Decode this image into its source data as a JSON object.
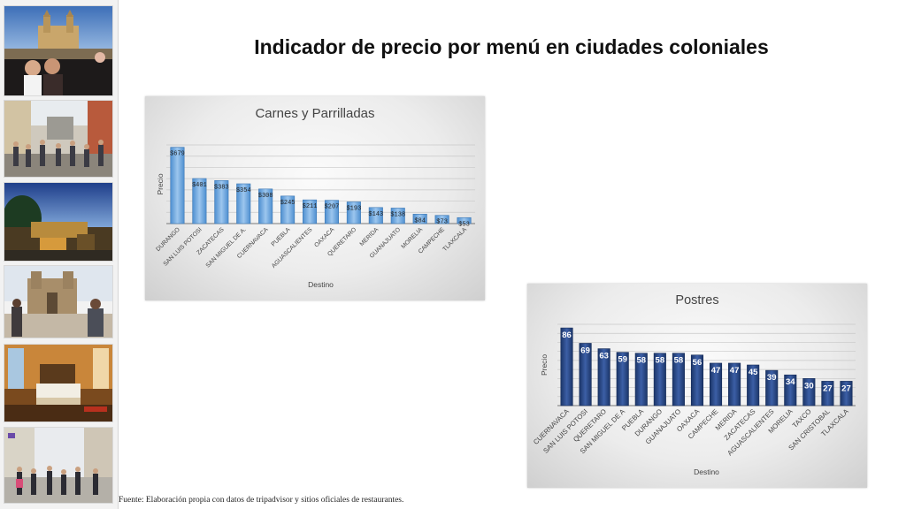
{
  "slide": {
    "title": "Indicador de precio por menú en ciudades coloniales",
    "source": "Fuente: Elaboración propia con datos de tripadvisor y sitios oficiales de restaurantes."
  },
  "photos": [
    "plaza-cathedral-photo",
    "street-crowd-photo",
    "terrace-dusk-photo",
    "church-plaza-photo",
    "hotel-room-photo",
    "pedestrian-street-photo"
  ],
  "chart_data": [
    {
      "type": "bar",
      "title": "Carnes y Parrilladas",
      "xlabel": "Destino",
      "ylabel": "Precio",
      "categories": [
        "DURANGO",
        "SAN LUIS POTOSI",
        "ZACATECAS",
        "SAN MIGUEL DE A.",
        "CUERNAVACA",
        "PUEBLA",
        "AGUASCALIENTES",
        "OAXACA",
        "QUERETARO",
        "MERIDA",
        "GUANAJUATO",
        "MORELIA",
        "CAMPECHE",
        "TLAXCALA"
      ],
      "values": [
        679,
        401,
        383,
        354,
        308,
        245,
        211,
        207,
        193,
        143,
        138,
        84,
        73,
        53
      ],
      "value_labels": [
        "$679",
        "$401",
        "$383",
        "$354",
        "$308",
        "$245",
        "$211",
        "$207",
        "$193",
        "$143",
        "$138",
        "$84",
        "$73",
        "$53"
      ],
      "ylim": [
        0,
        700
      ],
      "grid": true,
      "legend": "none",
      "bar_color": "#5b9bd5"
    },
    {
      "type": "bar",
      "title": "Postres",
      "xlabel": "Destino",
      "ylabel": "Precio",
      "categories": [
        "CUERNAVACA",
        "SAN LUIS POTOSI",
        "QUERETARO",
        "SAN MIGUEL DE A",
        "PUEBLA",
        "DURANGO",
        "GUANAJUATO",
        "OAXACA",
        "CAMPECHE",
        "MERIDA",
        "ZACATECAS",
        "AGUASCALIENTES",
        "MORELIA",
        "TAXCO",
        "SAN CRISTOBAL",
        "TLAXCALA"
      ],
      "values": [
        86,
        69,
        63,
        59,
        58,
        58,
        58,
        56,
        47,
        47,
        45,
        39,
        34,
        30,
        27,
        27
      ],
      "value_labels": [
        "86",
        "69",
        "63",
        "59",
        "58",
        "58",
        "58",
        "56",
        "47",
        "47",
        "45",
        "39",
        "34",
        "30",
        "27",
        "27"
      ],
      "ylim": [
        0,
        90
      ],
      "grid": true,
      "legend": "none",
      "bar_color": "#203f7a"
    }
  ]
}
